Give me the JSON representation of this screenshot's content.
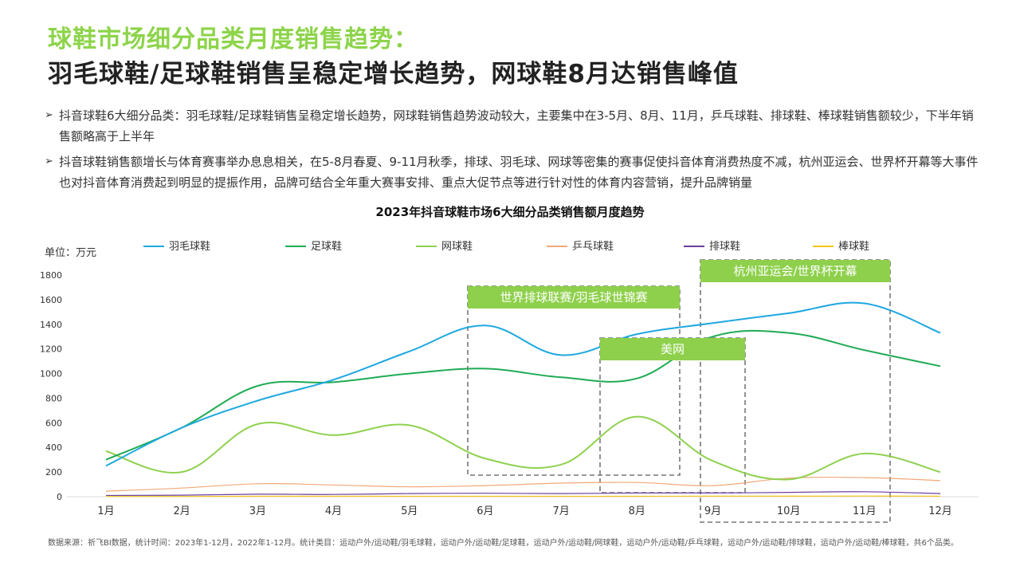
{
  "header": {
    "title_line1": "球鞋市场细分品类月度销售趋势：",
    "title_line2": "羽毛球鞋/足球鞋销售呈稳定增长趋势，网球鞋8月达销售峰值"
  },
  "bullets": [
    "抖音球鞋6大细分品类：羽毛球鞋/足球鞋销售呈稳定增长趋势，网球鞋销售趋势波动较大，主要集中在3-5月、8月、11月，乒乓球鞋、排球鞋、棒球鞋销售额较少，下半年销售额略高于上半年",
    "抖音球鞋销售额增长与体育赛事举办息息相关，在5-8月春夏、9-11月秋季，排球、羽毛球、网球等密集的赛事促使抖音体育消费热度不减，杭州亚运会、世界杯开幕等大事件也对抖音体育消费起到明显的提振作用，品牌可结合全年重大赛事安排、重点大促节点等进行针对性的体育内容营销，提升品牌销量"
  ],
  "bullet_marker": "➢",
  "chart_data": {
    "type": "line",
    "title": "2023年抖音球鞋市场6大细分品类销售额月度趋势",
    "unit_label": "单位：万元",
    "categories": [
      "1月",
      "2月",
      "3月",
      "4月",
      "5月",
      "6月",
      "7月",
      "8月",
      "9月",
      "10月",
      "11月",
      "12月"
    ],
    "ylim": [
      0,
      1800
    ],
    "yticks": [
      "0",
      "200",
      "400",
      "600",
      "800",
      "1000",
      "1200",
      "1400",
      "1600",
      "1800"
    ],
    "grid": false,
    "legend_position": "top",
    "series": [
      {
        "name": "羽毛球鞋",
        "color": "#1fa8e0",
        "values": [
          250,
          560,
          780,
          950,
          1180,
          1390,
          1150,
          1320,
          1410,
          1490,
          1570,
          1330
        ]
      },
      {
        "name": "足球鞋",
        "color": "#1fab54",
        "values": [
          300,
          560,
          900,
          930,
          1000,
          1040,
          970,
          960,
          1300,
          1330,
          1190,
          1060
        ]
      },
      {
        "name": "网球鞋",
        "color": "#8fd14f",
        "values": [
          370,
          200,
          590,
          500,
          580,
          310,
          260,
          650,
          290,
          140,
          350,
          200
        ]
      },
      {
        "name": "乒乓球鞋",
        "color": "#f0a87a",
        "values": [
          45,
          70,
          105,
          95,
          80,
          90,
          110,
          115,
          90,
          150,
          155,
          130
        ]
      },
      {
        "name": "排球鞋",
        "color": "#6b3fa0",
        "values": [
          10,
          12,
          20,
          18,
          25,
          28,
          25,
          30,
          30,
          35,
          40,
          25
        ]
      },
      {
        "name": "棒球鞋",
        "color": "#f5c518",
        "values": [
          2,
          2,
          3,
          3,
          3,
          3,
          3,
          3,
          4,
          4,
          5,
          4
        ]
      }
    ],
    "annotations": [
      {
        "label": "世界排球联赛/羽毛球世锦赛"
      },
      {
        "label": "美网"
      },
      {
        "label": "杭州亚运会/世界杯开幕"
      }
    ]
  },
  "footer": {
    "source": "数据来源：祈飞BI数据，统计时间：2023年1-12月，2022年1-12月。统计类目：运动户外/运动鞋/羽毛球鞋，运动户外/运动鞋/足球鞋，运动户外/运动鞋/网球鞋，运动户外/运动鞋/乒乓球鞋，运动户外/运动鞋/排球鞋，运动户外/运动鞋/棒球鞋，共6个品类。"
  }
}
